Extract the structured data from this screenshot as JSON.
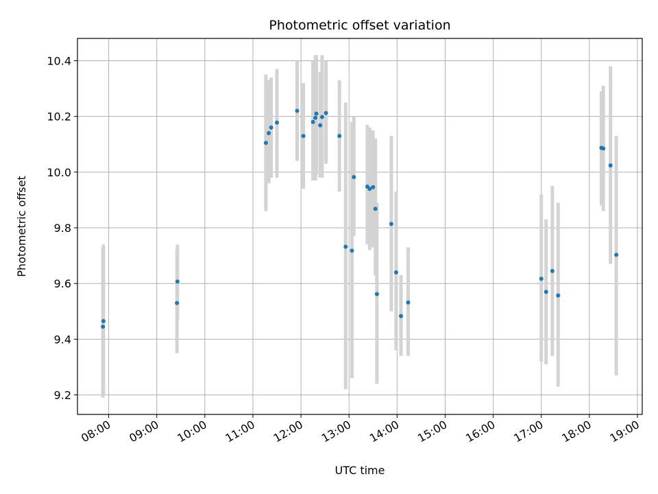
{
  "chart_data": {
    "type": "scatter",
    "title": "Photometric offset variation",
    "xlabel": "UTC time",
    "ylabel": "Photometric offset",
    "x_unit": "hours UTC",
    "xlim": [
      7.35,
      19.1
    ],
    "ylim": [
      9.13,
      10.48
    ],
    "grid": true,
    "x_ticks": [
      {
        "value": 8,
        "label": "08:00"
      },
      {
        "value": 9,
        "label": "09:00"
      },
      {
        "value": 10,
        "label": "10:00"
      },
      {
        "value": 11,
        "label": "11:00"
      },
      {
        "value": 12,
        "label": "12:00"
      },
      {
        "value": 13,
        "label": "13:00"
      },
      {
        "value": 14,
        "label": "14:00"
      },
      {
        "value": 15,
        "label": "15:00"
      },
      {
        "value": 16,
        "label": "16:00"
      },
      {
        "value": 17,
        "label": "17:00"
      },
      {
        "value": 18,
        "label": "18:00"
      },
      {
        "value": 19,
        "label": "19:00"
      }
    ],
    "y_ticks": [
      {
        "value": 9.2,
        "label": "9.2"
      },
      {
        "value": 9.4,
        "label": "9.4"
      },
      {
        "value": 9.6,
        "label": "9.6"
      },
      {
        "value": 9.8,
        "label": "9.8"
      },
      {
        "value": 10.0,
        "label": "10.0"
      },
      {
        "value": 10.2,
        "label": "10.2"
      },
      {
        "value": 10.4,
        "label": "10.4"
      }
    ],
    "point_color": "#1f77b4",
    "errorbar_color": "#d3d3d3",
    "points": [
      {
        "x": 7.88,
        "y": 9.445,
        "ylo": 9.19,
        "yhi": 9.73
      },
      {
        "x": 7.89,
        "y": 9.465,
        "ylo": 9.2,
        "yhi": 9.74
      },
      {
        "x": 9.42,
        "y": 9.53,
        "ylo": 9.35,
        "yhi": 9.72
      },
      {
        "x": 9.43,
        "y": 9.607,
        "ylo": 9.47,
        "yhi": 9.74
      },
      {
        "x": 11.27,
        "y": 10.105,
        "ylo": 9.86,
        "yhi": 10.35
      },
      {
        "x": 11.33,
        "y": 10.14,
        "ylo": 9.96,
        "yhi": 10.33
      },
      {
        "x": 11.38,
        "y": 10.16,
        "ylo": 9.98,
        "yhi": 10.34
      },
      {
        "x": 11.5,
        "y": 10.178,
        "ylo": 9.98,
        "yhi": 10.37
      },
      {
        "x": 11.92,
        "y": 10.22,
        "ylo": 10.04,
        "yhi": 10.4
      },
      {
        "x": 12.05,
        "y": 10.13,
        "ylo": 9.94,
        "yhi": 10.32
      },
      {
        "x": 12.25,
        "y": 10.18,
        "ylo": 9.97,
        "yhi": 10.4
      },
      {
        "x": 12.3,
        "y": 10.195,
        "ylo": 9.97,
        "yhi": 10.42
      },
      {
        "x": 12.32,
        "y": 10.21,
        "ylo": 9.99,
        "yhi": 10.42
      },
      {
        "x": 12.4,
        "y": 10.168,
        "ylo": 9.98,
        "yhi": 10.36
      },
      {
        "x": 12.44,
        "y": 10.198,
        "ylo": 9.98,
        "yhi": 10.42
      },
      {
        "x": 12.52,
        "y": 10.212,
        "ylo": 10.03,
        "yhi": 10.4
      },
      {
        "x": 12.8,
        "y": 10.13,
        "ylo": 9.93,
        "yhi": 10.33
      },
      {
        "x": 12.93,
        "y": 9.732,
        "ylo": 9.22,
        "yhi": 10.25
      },
      {
        "x": 13.06,
        "y": 9.718,
        "ylo": 9.26,
        "yhi": 10.18
      },
      {
        "x": 13.1,
        "y": 9.982,
        "ylo": 9.77,
        "yhi": 10.2
      },
      {
        "x": 13.38,
        "y": 9.948,
        "ylo": 9.74,
        "yhi": 10.17
      },
      {
        "x": 13.43,
        "y": 9.94,
        "ylo": 9.72,
        "yhi": 10.16
      },
      {
        "x": 13.5,
        "y": 9.946,
        "ylo": 9.73,
        "yhi": 10.15
      },
      {
        "x": 13.55,
        "y": 9.868,
        "ylo": 9.63,
        "yhi": 10.12
      },
      {
        "x": 13.58,
        "y": 9.562,
        "ylo": 9.24,
        "yhi": 9.89
      },
      {
        "x": 13.88,
        "y": 9.814,
        "ylo": 9.5,
        "yhi": 10.13
      },
      {
        "x": 13.98,
        "y": 9.64,
        "ylo": 9.36,
        "yhi": 9.93
      },
      {
        "x": 14.08,
        "y": 9.483,
        "ylo": 9.34,
        "yhi": 9.63
      },
      {
        "x": 14.23,
        "y": 9.532,
        "ylo": 9.34,
        "yhi": 9.73
      },
      {
        "x": 17.0,
        "y": 9.617,
        "ylo": 9.32,
        "yhi": 9.92
      },
      {
        "x": 17.1,
        "y": 9.57,
        "ylo": 9.31,
        "yhi": 9.83
      },
      {
        "x": 17.23,
        "y": 9.645,
        "ylo": 9.34,
        "yhi": 9.95
      },
      {
        "x": 17.35,
        "y": 9.557,
        "ylo": 9.23,
        "yhi": 9.89
      },
      {
        "x": 18.25,
        "y": 10.087,
        "ylo": 9.88,
        "yhi": 10.29
      },
      {
        "x": 18.29,
        "y": 10.085,
        "ylo": 9.86,
        "yhi": 10.31
      },
      {
        "x": 18.44,
        "y": 10.024,
        "ylo": 9.67,
        "yhi": 10.38
      },
      {
        "x": 18.56,
        "y": 9.703,
        "ylo": 9.27,
        "yhi": 10.13
      }
    ]
  }
}
